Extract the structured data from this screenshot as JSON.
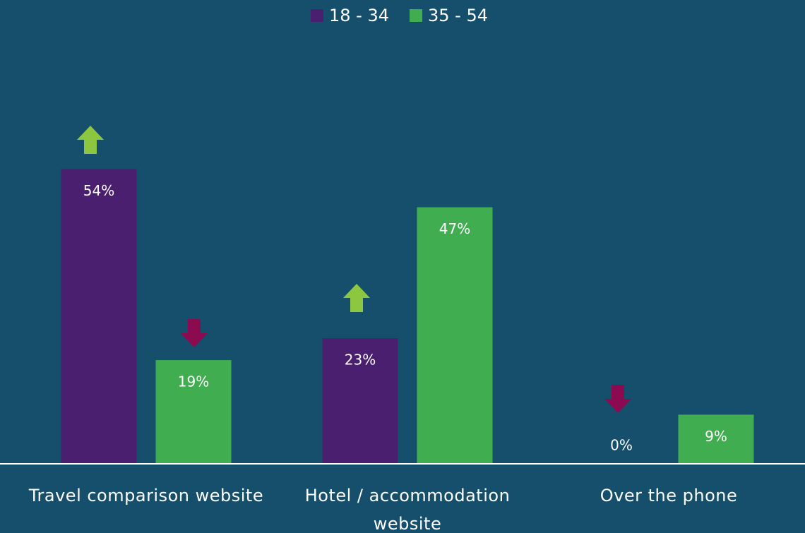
{
  "chart_data": {
    "type": "bar",
    "categories": [
      "Travel comparison website",
      "Hotel / accommodation website",
      "Over the phone"
    ],
    "series": [
      {
        "name": "18 - 34",
        "color": "#4b1f6f",
        "values": [
          54,
          23,
          0
        ],
        "value_labels": [
          "54%",
          "23%",
          "0%"
        ]
      },
      {
        "name": "35 - 54",
        "color": "#40ad51",
        "values": [
          19,
          47,
          9
        ],
        "value_labels": [
          "19%",
          "47%",
          "9%"
        ]
      }
    ],
    "ylim": [
      0,
      60
    ]
  }
}
